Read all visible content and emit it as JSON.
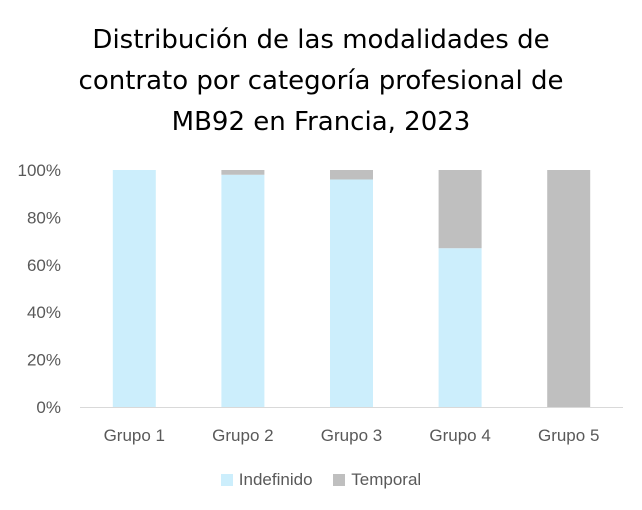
{
  "chart_data": {
    "type": "bar",
    "stacked": true,
    "percent": true,
    "title_lines": [
      "Distribución de las modalidades de",
      "contrato por categoría profesional de",
      "MB92 en Francia, 2023"
    ],
    "categories": [
      "Grupo 1",
      "Grupo 2",
      "Grupo 3",
      "Grupo 4",
      "Grupo 5"
    ],
    "series": [
      {
        "name": "Indefinido",
        "color": "#CCEEFC",
        "values": [
          100,
          98,
          96,
          67,
          0
        ]
      },
      {
        "name": "Temporal",
        "color": "#BFBFBF",
        "values": [
          0,
          2,
          4,
          33,
          100
        ]
      }
    ],
    "ylim": [
      0,
      100
    ],
    "yticks": [
      0,
      20,
      40,
      60,
      80,
      100
    ],
    "ytick_labels": [
      "0%",
      "20%",
      "40%",
      "60%",
      "80%",
      "100%"
    ],
    "xlabel": "",
    "ylabel": "",
    "grid": false,
    "legend_position": "bottom"
  }
}
